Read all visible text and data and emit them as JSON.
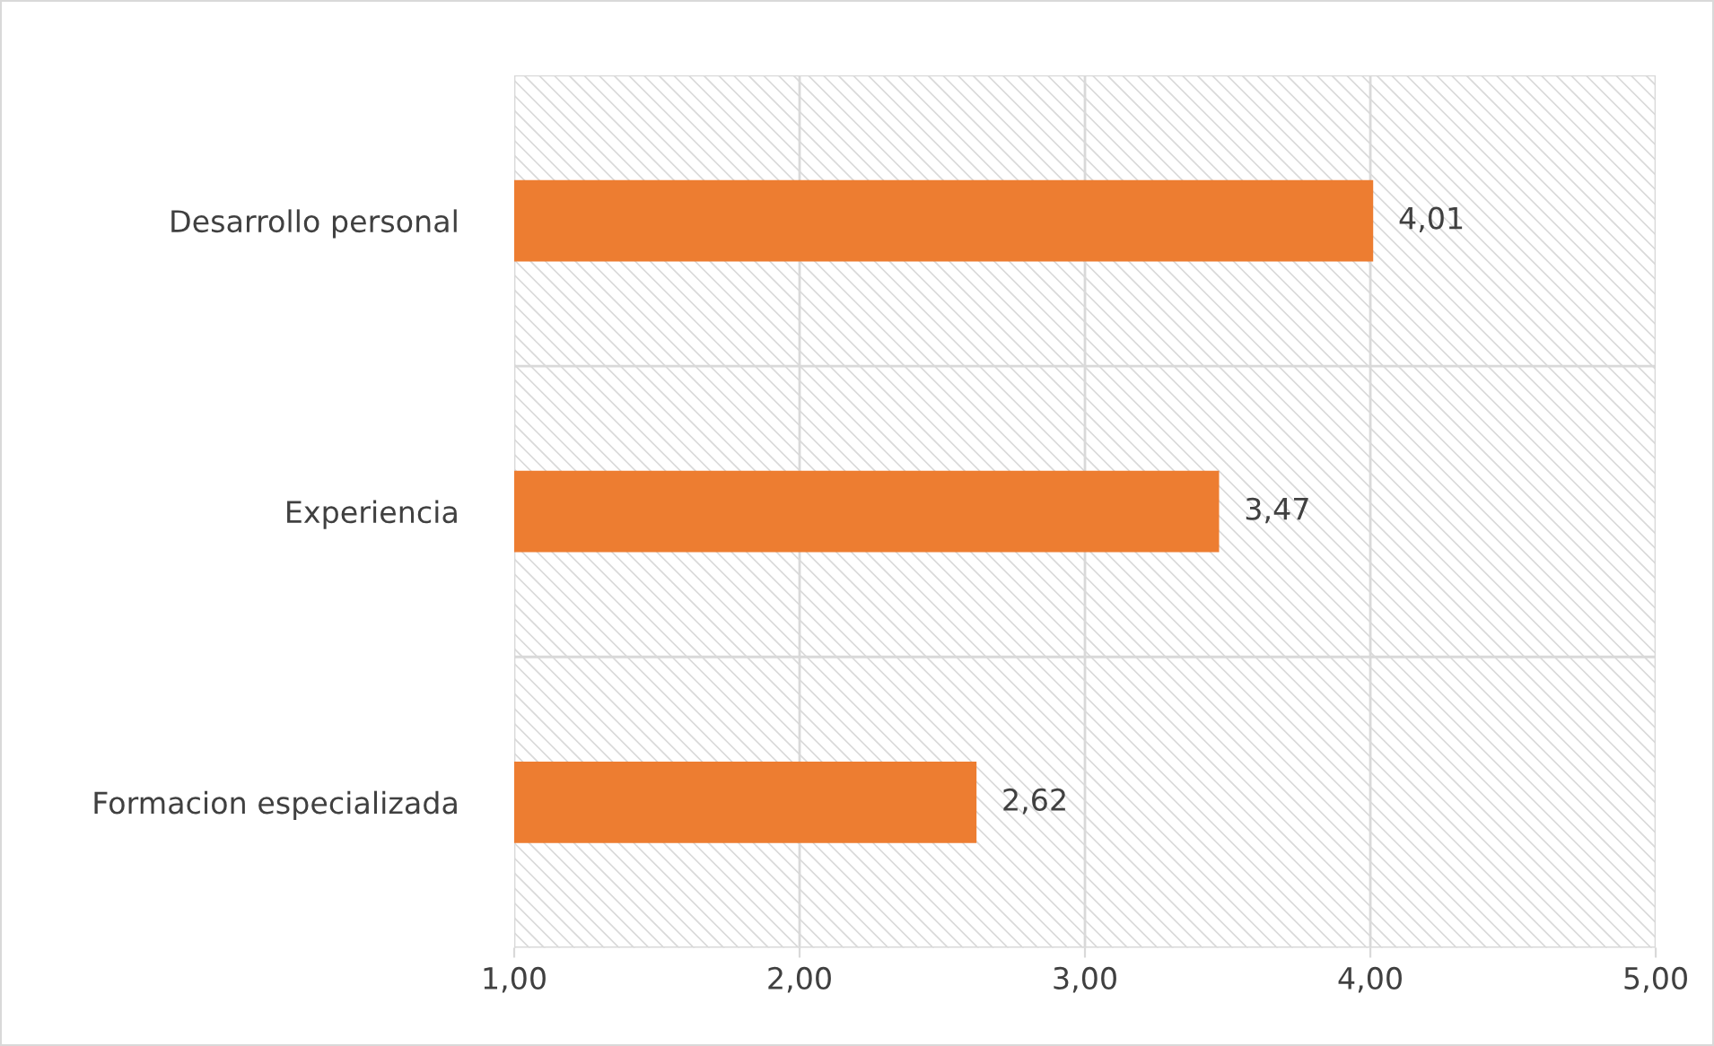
{
  "chart_data": {
    "type": "bar",
    "orientation": "horizontal",
    "categories": [
      "Desarrollo personal",
      "Experiencia",
      "Formacion especializada"
    ],
    "values": [
      4.01,
      3.47,
      2.62
    ],
    "color": "#ed7d31",
    "value_labels": [
      "4,01",
      "3,47",
      "2,62"
    ],
    "xlim": [
      1,
      5
    ],
    "xticks": [
      {
        "value": 1,
        "label": "1,00"
      },
      {
        "value": 2,
        "label": "2,00"
      },
      {
        "value": 3,
        "label": "3,00"
      },
      {
        "value": 4,
        "label": "4,00"
      },
      {
        "value": 5,
        "label": "5,00"
      }
    ],
    "grid": true
  }
}
